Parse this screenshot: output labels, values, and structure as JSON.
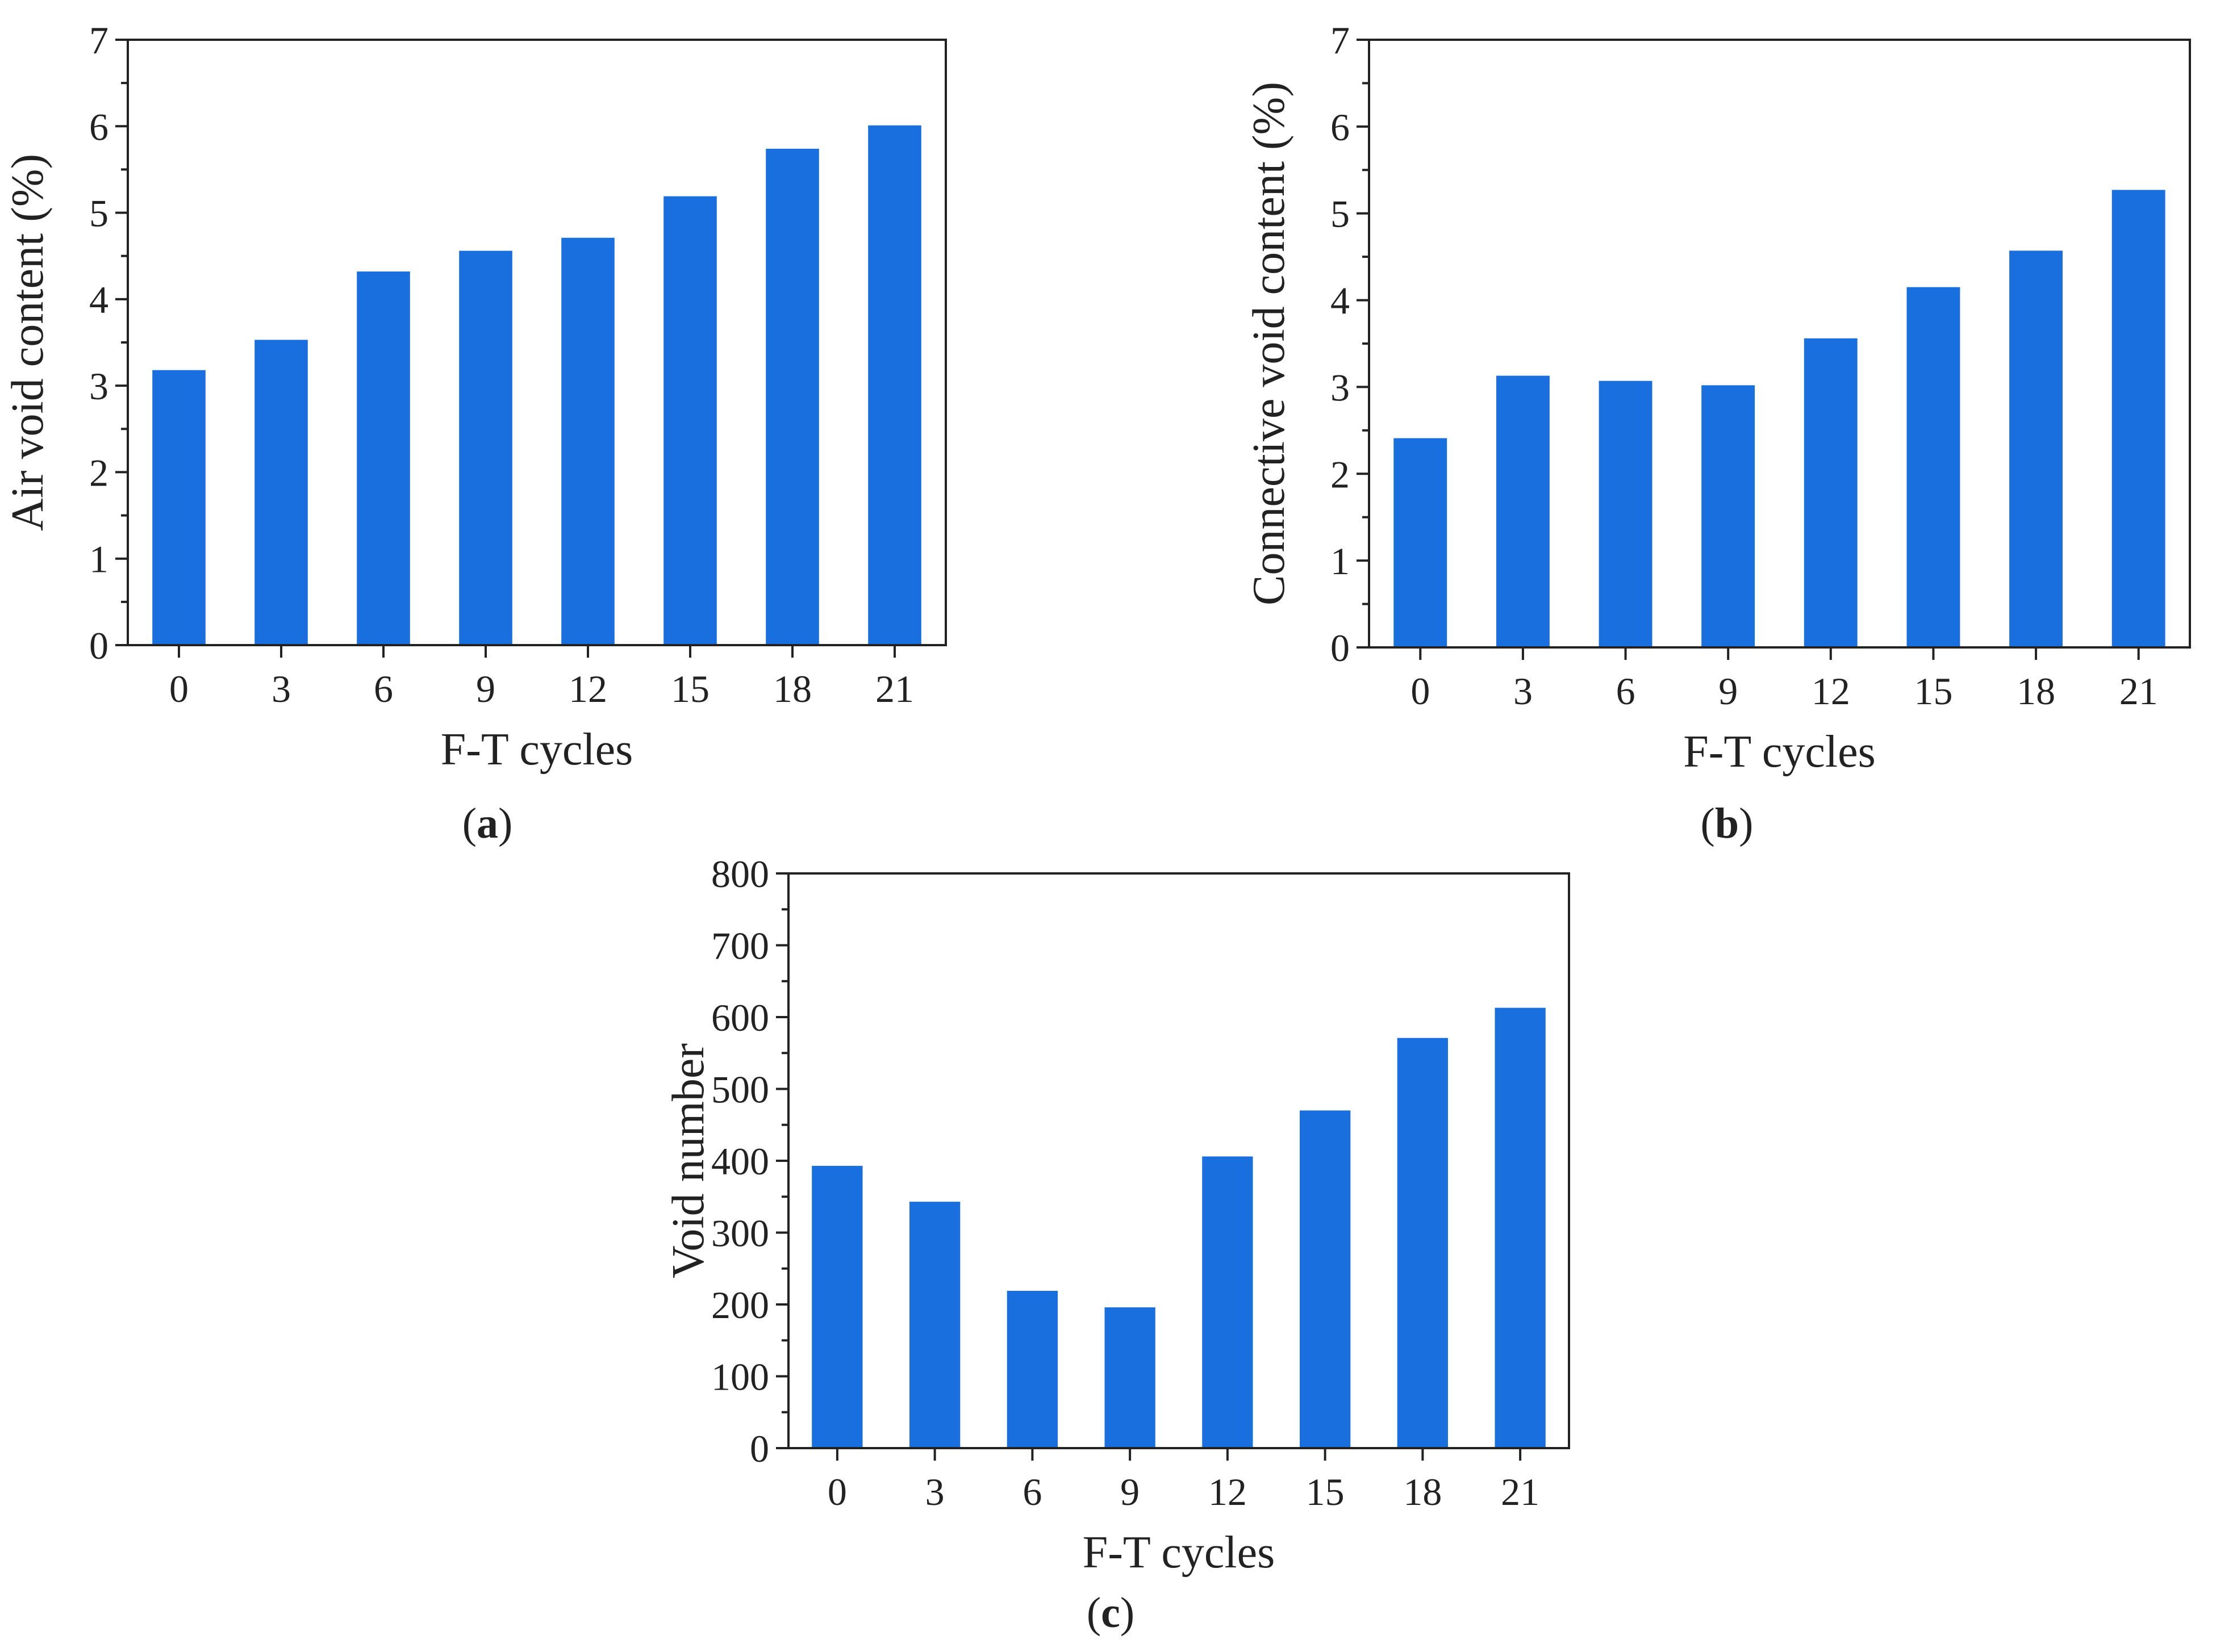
{
  "bar_color": "#1a6fdf",
  "chart_data": [
    {
      "type": "bar",
      "panel": "a",
      "caption_letter": "a",
      "title": "",
      "xlabel": "F-T cycles",
      "ylabel": "Air void content (%)",
      "categories": [
        "0",
        "3",
        "6",
        "9",
        "12",
        "15",
        "18",
        "21"
      ],
      "values": [
        3.18,
        3.53,
        4.32,
        4.56,
        4.71,
        5.19,
        5.74,
        6.01
      ],
      "ylim": [
        0,
        7
      ],
      "yticks": [
        "0",
        "1",
        "2",
        "3",
        "4",
        "5",
        "6",
        "7"
      ],
      "grid": false
    },
    {
      "type": "bar",
      "panel": "b",
      "caption_letter": "b",
      "title": "",
      "xlabel": "F-T cycles",
      "ylabel": "Connective void content (%)",
      "categories": [
        "0",
        "3",
        "6",
        "9",
        "12",
        "15",
        "18",
        "21"
      ],
      "values": [
        2.41,
        3.13,
        3.07,
        3.02,
        3.56,
        4.15,
        4.57,
        5.27
      ],
      "ylim": [
        0,
        7
      ],
      "yticks": [
        "0",
        "1",
        "2",
        "3",
        "4",
        "5",
        "6",
        "7"
      ],
      "grid": false
    },
    {
      "type": "bar",
      "panel": "c",
      "caption_letter": "c",
      "title": "",
      "xlabel": "F-T cycles",
      "ylabel": "Void number",
      "categories": [
        "0",
        "3",
        "6",
        "9",
        "12",
        "15",
        "18",
        "21"
      ],
      "values": [
        393,
        343,
        219,
        196,
        406,
        470,
        571,
        613
      ],
      "ylim": [
        0,
        800
      ],
      "yticks": [
        "0",
        "100",
        "200",
        "300",
        "400",
        "500",
        "600",
        "700",
        "800"
      ],
      "grid": false
    }
  ]
}
